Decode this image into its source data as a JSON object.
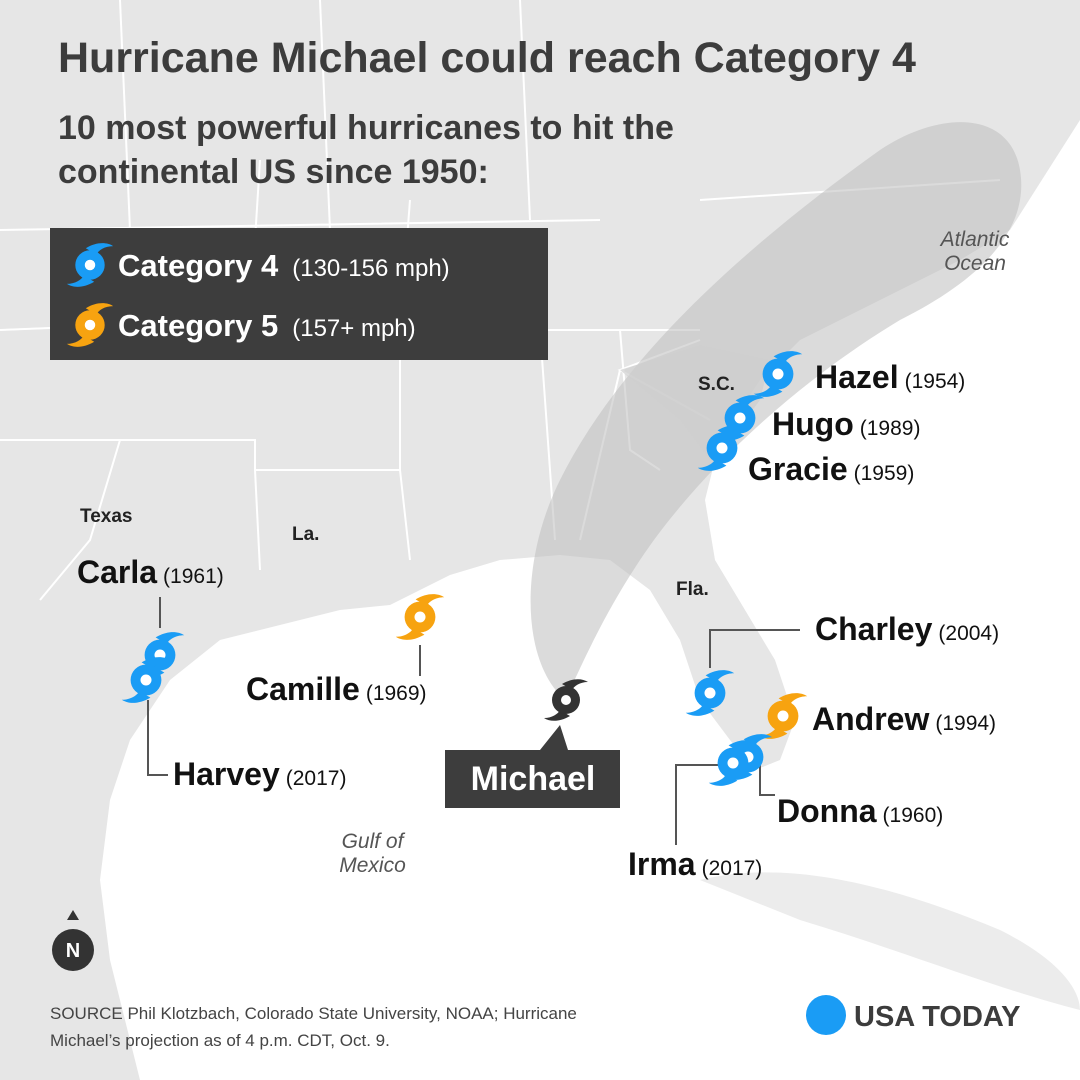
{
  "title": "Hurricane Michael could reach Category 4",
  "subtitle": "10 most powerful hurricanes to hit the continental US since 1950:",
  "legend": [
    {
      "label": "Category 4",
      "range": "(130-156 mph)",
      "color": "#1a9cf5"
    },
    {
      "label": "Category 5",
      "range": "(157+ mph)",
      "color": "#f7a310"
    }
  ],
  "regions": [
    "Texas",
    "La.",
    "Fla.",
    "S.C."
  ],
  "water": [
    "Atlantic Ocean",
    "Gulf of Mexico"
  ],
  "hurricanes": [
    {
      "name": "Hazel",
      "year": "(1954)",
      "color": "#1a9cf5"
    },
    {
      "name": "Hugo",
      "year": "(1989)",
      "color": "#1a9cf5"
    },
    {
      "name": "Gracie",
      "year": "(1959)",
      "color": "#1a9cf5"
    },
    {
      "name": "Carla",
      "year": "(1961)",
      "color": "#1a9cf5"
    },
    {
      "name": "Harvey",
      "year": "(2017)",
      "color": "#1a9cf5"
    },
    {
      "name": "Camille",
      "year": "(1969)",
      "color": "#f7a310"
    },
    {
      "name": "Charley",
      "year": "(2004)",
      "color": "#1a9cf5"
    },
    {
      "name": "Andrew",
      "year": "(1994)",
      "color": "#f7a310"
    },
    {
      "name": "Donna",
      "year": "(1960)",
      "color": "#1a9cf5"
    },
    {
      "name": "Irma",
      "year": "(2017)",
      "color": "#1a9cf5"
    }
  ],
  "michael": "Michael",
  "north": "N",
  "source": "SOURCE Phil Klotzbach, Colorado State University, NOAA; Hurricane Michael’s projection as of 4 p.m. CDT, Oct. 9.",
  "brand": "USA TODAY"
}
